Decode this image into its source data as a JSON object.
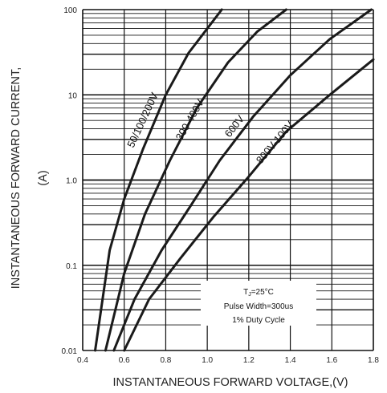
{
  "chart_data": {
    "type": "line",
    "xlabel": "INSTANTANEOUS FORWARD VOLTAGE,(V)",
    "ylabel_line1": "INSTANTANEOUS FORWARD CURRENT,",
    "ylabel_line2": "(A)",
    "xlim": [
      0.4,
      1.8
    ],
    "ylim": [
      0.01,
      100
    ],
    "y_scale": "log",
    "grid": true,
    "x_ticks": [
      0.4,
      0.6,
      0.8,
      1.0,
      1.2,
      1.4,
      1.6,
      1.8
    ],
    "x_tick_labels": [
      "0.4",
      "0.6",
      "0.8",
      "1.0",
      "1.2",
      "1.4",
      "1.6",
      "1.8"
    ],
    "y_ticks": [
      0.01,
      0.1,
      1.0,
      10,
      100
    ],
    "y_tick_labels": [
      "0.01",
      "0.1",
      "1.0",
      "10",
      "100"
    ],
    "series": [
      {
        "name": "50/100/200V",
        "x": [
          0.46,
          0.53,
          0.6,
          0.69,
          0.8,
          0.91,
          1.07
        ],
        "y": [
          0.01,
          0.15,
          0.6,
          2.3,
          10,
          31,
          100
        ]
      },
      {
        "name": "300-400V",
        "x": [
          0.51,
          0.6,
          0.7,
          0.82,
          0.95,
          1.1,
          1.24,
          1.38
        ],
        "y": [
          0.01,
          0.08,
          0.4,
          1.7,
          7,
          24,
          55,
          100
        ]
      },
      {
        "name": "600V",
        "x": [
          0.55,
          0.65,
          0.78,
          0.92,
          1.06,
          1.22,
          1.4,
          1.59,
          1.79
        ],
        "y": [
          0.01,
          0.04,
          0.15,
          0.5,
          1.7,
          5.5,
          17,
          45,
          100
        ]
      },
      {
        "name": "800V-100V",
        "x": [
          0.6,
          0.72,
          0.87,
          1.03,
          1.2,
          1.38,
          1.59,
          1.8
        ],
        "y": [
          0.01,
          0.04,
          0.12,
          0.37,
          1.1,
          3.7,
          10,
          26
        ]
      }
    ],
    "annotation": {
      "line1": "TJ=25°C",
      "line1_main": "T",
      "line1_sub": "J",
      "line1_rest": "=25°C",
      "line2": "Pulse Width=300us",
      "line3": "1% Duty Cycle"
    }
  }
}
